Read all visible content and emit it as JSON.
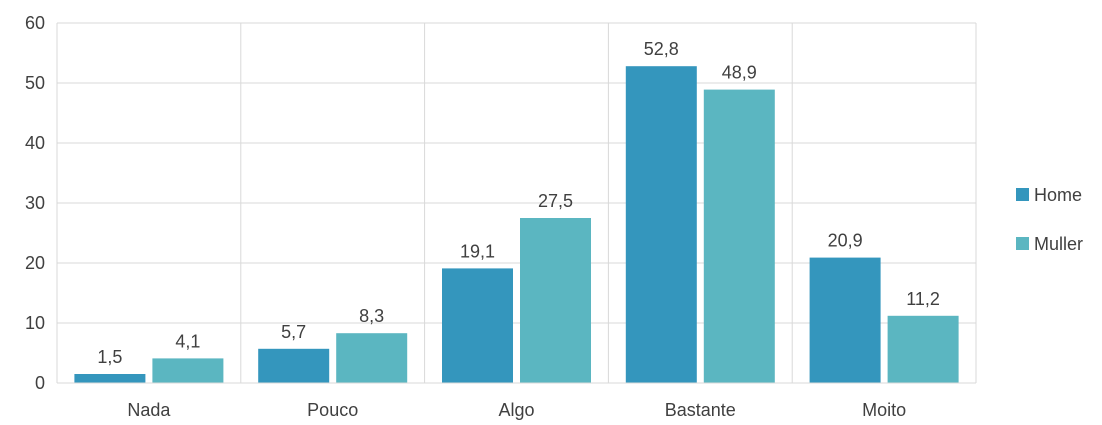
{
  "chart_data": {
    "type": "bar",
    "title": "",
    "xlabel": "",
    "ylabel": "",
    "categories": [
      "Nada",
      "Pouco",
      "Algo",
      "Bastante",
      "Moito"
    ],
    "series": [
      {
        "name": "Home",
        "color": "#3496bd",
        "values": [
          1.5,
          5.7,
          19.1,
          52.8,
          20.9
        ],
        "labels": [
          "1,5",
          "5,7",
          "19,1",
          "52,8",
          "20,9"
        ]
      },
      {
        "name": "Muller",
        "color": "#5bb6c1",
        "values": [
          4.1,
          8.3,
          27.5,
          48.9,
          11.2
        ],
        "labels": [
          "4,1",
          "8,3",
          "27,5",
          "48,9",
          "11,2"
        ]
      }
    ],
    "ylim": [
      0,
      60
    ],
    "yticks": [
      0,
      10,
      20,
      30,
      40,
      50,
      60
    ],
    "grid": true,
    "legend": "right"
  }
}
